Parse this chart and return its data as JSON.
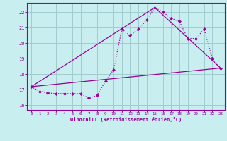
{
  "background_color": "#c8eef0",
  "grid_color": "#a0ccd0",
  "line_color": "#990099",
  "xlabel": "Windchill (Refroidissement éolien,°C)",
  "xlim": [
    -0.5,
    23.5
  ],
  "ylim": [
    15.7,
    22.6
  ],
  "yticks": [
    16,
    17,
    18,
    19,
    20,
    21,
    22
  ],
  "xticks": [
    0,
    1,
    2,
    3,
    4,
    5,
    6,
    7,
    8,
    9,
    10,
    11,
    12,
    13,
    14,
    15,
    16,
    17,
    18,
    19,
    20,
    21,
    22,
    23
  ],
  "line1_x": [
    0,
    1,
    2,
    3,
    4,
    5,
    6,
    7,
    8,
    9,
    10,
    11,
    12,
    13,
    14,
    15,
    16,
    17,
    18,
    19,
    20,
    21,
    22,
    23
  ],
  "line1_y": [
    17.2,
    16.9,
    16.8,
    16.75,
    16.75,
    16.75,
    16.75,
    16.45,
    16.65,
    17.55,
    18.3,
    20.9,
    20.5,
    20.9,
    21.5,
    22.3,
    22.0,
    21.6,
    21.4,
    20.3,
    20.3,
    20.9,
    19.0,
    18.4
  ],
  "line2_x": [
    0,
    15,
    23
  ],
  "line2_y": [
    17.2,
    22.3,
    18.4
  ],
  "line3_x": [
    0,
    23
  ],
  "line3_y": [
    17.2,
    18.4
  ]
}
